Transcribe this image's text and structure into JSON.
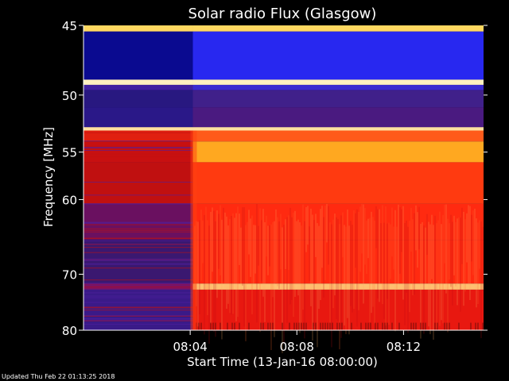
{
  "chart_data": {
    "type": "heatmap",
    "title": "Solar radio Flux (Glasgow)",
    "xlabel": "Start Time (13-Jan-16 08:00:00)",
    "ylabel": "Frequency [MHz]",
    "x_range_minutes": [
      0,
      15
    ],
    "x_ticks": [
      {
        "minute": 4,
        "label": "08:04"
      },
      {
        "minute": 8,
        "label": "08:08"
      },
      {
        "minute": 12,
        "label": "08:12"
      }
    ],
    "y_range_mhz": [
      45,
      80
    ],
    "y_scale": "reciprocal",
    "y_ticks": [
      {
        "mhz": 45,
        "label": "45"
      },
      {
        "mhz": 50,
        "label": "50"
      },
      {
        "mhz": 55,
        "label": "55"
      },
      {
        "mhz": 60,
        "label": "60"
      },
      {
        "mhz": 70,
        "label": "70"
      },
      {
        "mhz": 80,
        "label": "80"
      }
    ],
    "transition_minute": 4.1,
    "colormap": [
      "#1a0a5a",
      "#3a2ad8",
      "#8a1050",
      "#d01010",
      "#ff3a1a",
      "#ff8c1a",
      "#ffd040",
      "#ffffc0"
    ],
    "bands": [
      {
        "f0": 45.0,
        "f1": 45.4,
        "before": "#ffd860",
        "after": "#ffd860"
      },
      {
        "f0": 45.4,
        "f1": 48.8,
        "before": "#0a0a90",
        "after": "#2828f0"
      },
      {
        "f0": 48.8,
        "f1": 49.2,
        "before": "#fff0c0",
        "after": "#fff0c0"
      },
      {
        "f0": 49.2,
        "f1": 49.6,
        "before": "#4020a0",
        "after": "#3a2ad0"
      },
      {
        "f0": 49.6,
        "f1": 51.0,
        "before": "#281880",
        "after": "#40208a"
      },
      {
        "f0": 51.0,
        "f1": 52.7,
        "before": "#2a1888",
        "after": "#4a1a80"
      },
      {
        "f0": 52.7,
        "f1": 53.0,
        "before": "#ffe0a0",
        "after": "#ffe0a0"
      },
      {
        "f0": 53.0,
        "f1": 54.0,
        "before": "#e02010",
        "after": "#ff5a1a"
      },
      {
        "f0": 54.0,
        "f1": 56.0,
        "before": "#c81010",
        "after": "#ffa820"
      },
      {
        "f0": 56.0,
        "f1": 60.5,
        "before": "#c01010",
        "after": "#ff3a10"
      },
      {
        "f0": 60.5,
        "f1": 65.0,
        "before": "#6a1060",
        "after": "#ff2a10"
      },
      {
        "f0": 65.0,
        "f1": 71.5,
        "before": "#3a1870",
        "after": "#ff2a10"
      },
      {
        "f0": 71.5,
        "f1": 72.5,
        "before": "#8a1050",
        "after": "#ffc070"
      },
      {
        "f0": 72.5,
        "f1": 80.0,
        "before": "#3a1a88",
        "after": "#e81810"
      }
    ],
    "updated_text": "Updated Thu Feb 22 01:13:25 2018"
  }
}
